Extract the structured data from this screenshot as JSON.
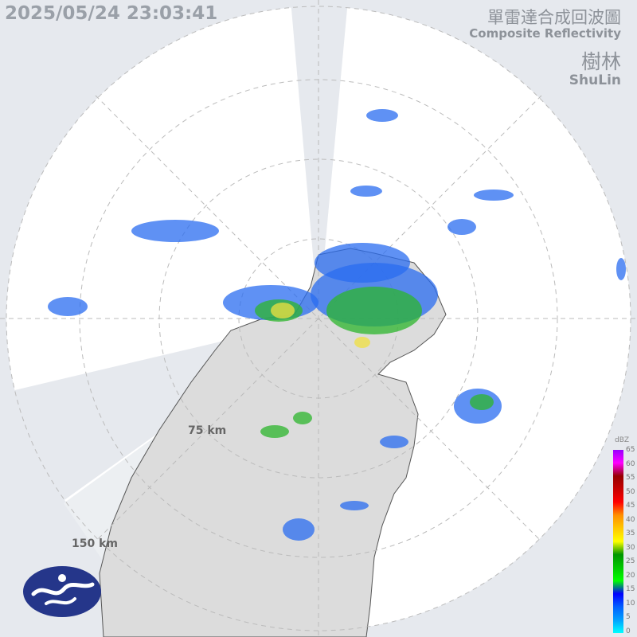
{
  "header": {
    "timestamp": "2025/05/24 23:03:41",
    "product_zh": "單雷達合成回波圖",
    "product_en": "Composite Reflectivity",
    "station_zh": "樹林",
    "station_en": "ShuLin"
  },
  "range_rings": [
    {
      "label": "75 km"
    },
    {
      "label": "150 km"
    }
  ],
  "legend": {
    "unit": "dBZ",
    "ticks": [
      "65",
      "60",
      "55",
      "50",
      "45",
      "40",
      "35",
      "30",
      "25",
      "20",
      "15",
      "10",
      "5",
      "0"
    ],
    "colors": [
      "#00ffff",
      "#00a0ff",
      "#0060ff",
      "#0000ff",
      "#00ff00",
      "#00c800",
      "#009600",
      "#ffff00",
      "#ffc800",
      "#ff9000",
      "#ff0000",
      "#c80000",
      "#960000",
      "#ff00ff",
      "#9900ff"
    ]
  },
  "colors": {
    "background": "#e6e9ee",
    "coverage": "#ffffff",
    "land": "#dcdcdc",
    "echo_blue": "#2a6cf0",
    "echo_green": "#2cb52c",
    "echo_yellow": "#f0e040"
  },
  "logo": {
    "name": "cwa-logo"
  }
}
